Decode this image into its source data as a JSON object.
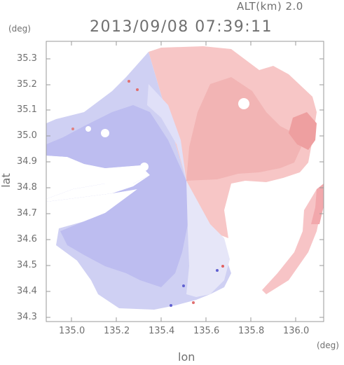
{
  "header": {
    "altitude": "ALT(km) 2.0",
    "timestamp": "2013/09/08 07:39:11"
  },
  "axes": {
    "y_unit": "(deg)",
    "x_unit": "(deg)",
    "y_label": "lat",
    "x_label": "lon",
    "y_ticks": [
      "35.3",
      "35.2",
      "35.1",
      "35.0",
      "34.9",
      "34.8",
      "34.7",
      "34.6",
      "34.5",
      "34.4",
      "34.3"
    ],
    "x_ticks": [
      "135.0",
      "135.2",
      "135.4",
      "135.6",
      "135.8",
      "136.0"
    ]
  },
  "map": {
    "type": "doppler radial velocity",
    "center_lon": 135.53,
    "center_lat": 34.81,
    "lon_range": [
      134.87,
      136.18
    ],
    "lat_range": [
      34.27,
      35.35
    ],
    "colors": {
      "approaching": "#b8b8ee",
      "receding": "#f7c0c0",
      "near_zero": "#f2f2fb"
    }
  }
}
